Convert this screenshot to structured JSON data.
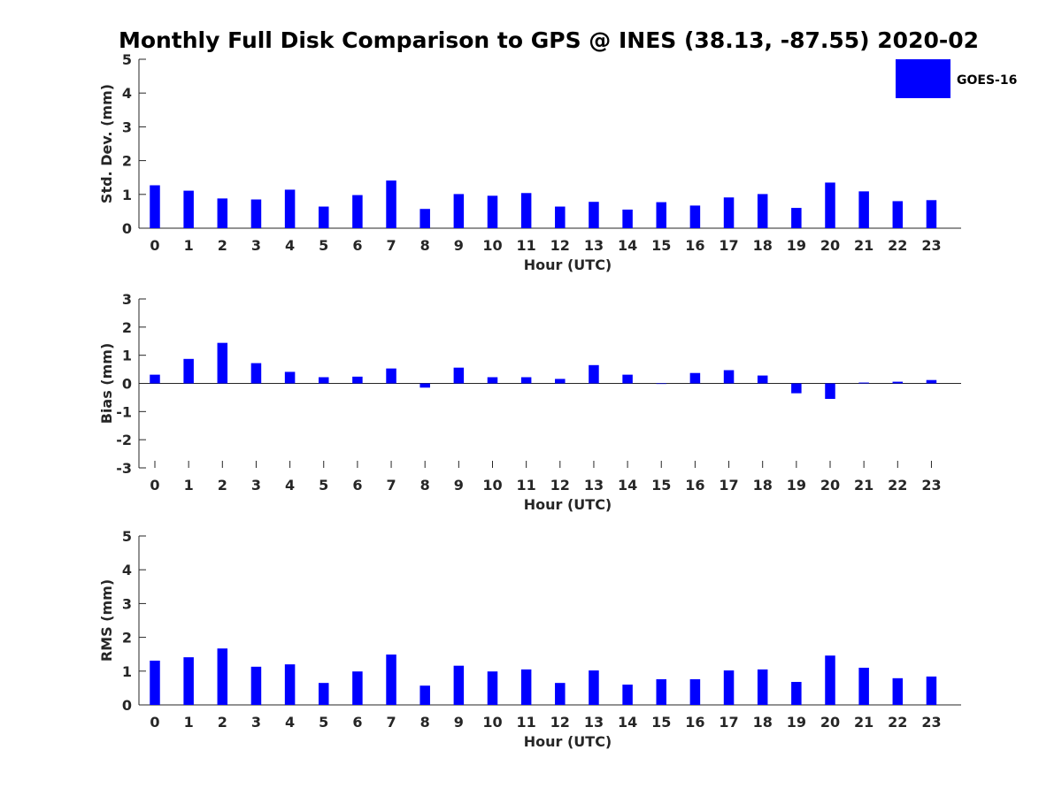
{
  "title": "Monthly Full Disk Comparison to GPS @ INES (38.13, -87.55) 2020-02",
  "legend": {
    "label": "GOES-16",
    "color": "#0000ff"
  },
  "chart_data": [
    {
      "type": "bar",
      "title": "Monthly Full Disk Comparison to GPS @ INES (38.13, -87.55) 2020-02",
      "xlabel": "Hour (UTC)",
      "ylabel": "Std. Dev. (mm)",
      "ylim": [
        0,
        5
      ],
      "yticks": [
        "0",
        "1",
        "2",
        "3",
        "4",
        "5"
      ],
      "categories": [
        "0",
        "1",
        "2",
        "3",
        "4",
        "5",
        "6",
        "7",
        "8",
        "9",
        "10",
        "11",
        "12",
        "13",
        "14",
        "15",
        "16",
        "17",
        "18",
        "19",
        "20",
        "21",
        "22",
        "23"
      ],
      "series": [
        {
          "name": "GOES-16",
          "color": "#0000ff",
          "values": [
            1.27,
            1.11,
            0.88,
            0.85,
            1.14,
            0.64,
            0.98,
            1.41,
            0.57,
            1.01,
            0.96,
            1.04,
            0.64,
            0.78,
            0.55,
            0.77,
            0.67,
            0.91,
            1.01,
            0.6,
            1.35,
            1.09,
            0.8,
            0.83
          ]
        }
      ],
      "legend_position": "top-right"
    },
    {
      "type": "bar",
      "xlabel": "Hour (UTC)",
      "ylabel": "Bias (mm)",
      "ylim": [
        -3,
        3
      ],
      "yticks": [
        "-3",
        "-2",
        "-1",
        "0",
        "1",
        "2",
        "3"
      ],
      "categories": [
        "0",
        "1",
        "2",
        "3",
        "4",
        "5",
        "6",
        "7",
        "8",
        "9",
        "10",
        "11",
        "12",
        "13",
        "14",
        "15",
        "16",
        "17",
        "18",
        "19",
        "20",
        "21",
        "22",
        "23"
      ],
      "series": [
        {
          "name": "GOES-16",
          "color": "#0000ff",
          "values": [
            0.31,
            0.87,
            1.44,
            0.72,
            0.41,
            0.22,
            0.24,
            0.53,
            -0.15,
            0.56,
            0.22,
            0.22,
            0.16,
            0.65,
            0.31,
            -0.02,
            0.37,
            0.47,
            0.28,
            -0.35,
            -0.55,
            0.03,
            0.06,
            0.12
          ]
        }
      ]
    },
    {
      "type": "bar",
      "xlabel": "Hour (UTC)",
      "ylabel": "RMS (mm)",
      "ylim": [
        0,
        5
      ],
      "yticks": [
        "0",
        "1",
        "2",
        "3",
        "4",
        "5"
      ],
      "categories": [
        "0",
        "1",
        "2",
        "3",
        "4",
        "5",
        "6",
        "7",
        "8",
        "9",
        "10",
        "11",
        "12",
        "13",
        "14",
        "15",
        "16",
        "17",
        "18",
        "19",
        "20",
        "21",
        "22",
        "23"
      ],
      "series": [
        {
          "name": "GOES-16",
          "color": "#0000ff",
          "values": [
            1.31,
            1.41,
            1.67,
            1.13,
            1.2,
            0.65,
            0.99,
            1.49,
            0.57,
            1.16,
            0.99,
            1.05,
            0.65,
            1.02,
            0.6,
            0.76,
            0.76,
            1.02,
            1.05,
            0.68,
            1.46,
            1.1,
            0.79,
            0.84
          ]
        }
      ]
    }
  ]
}
